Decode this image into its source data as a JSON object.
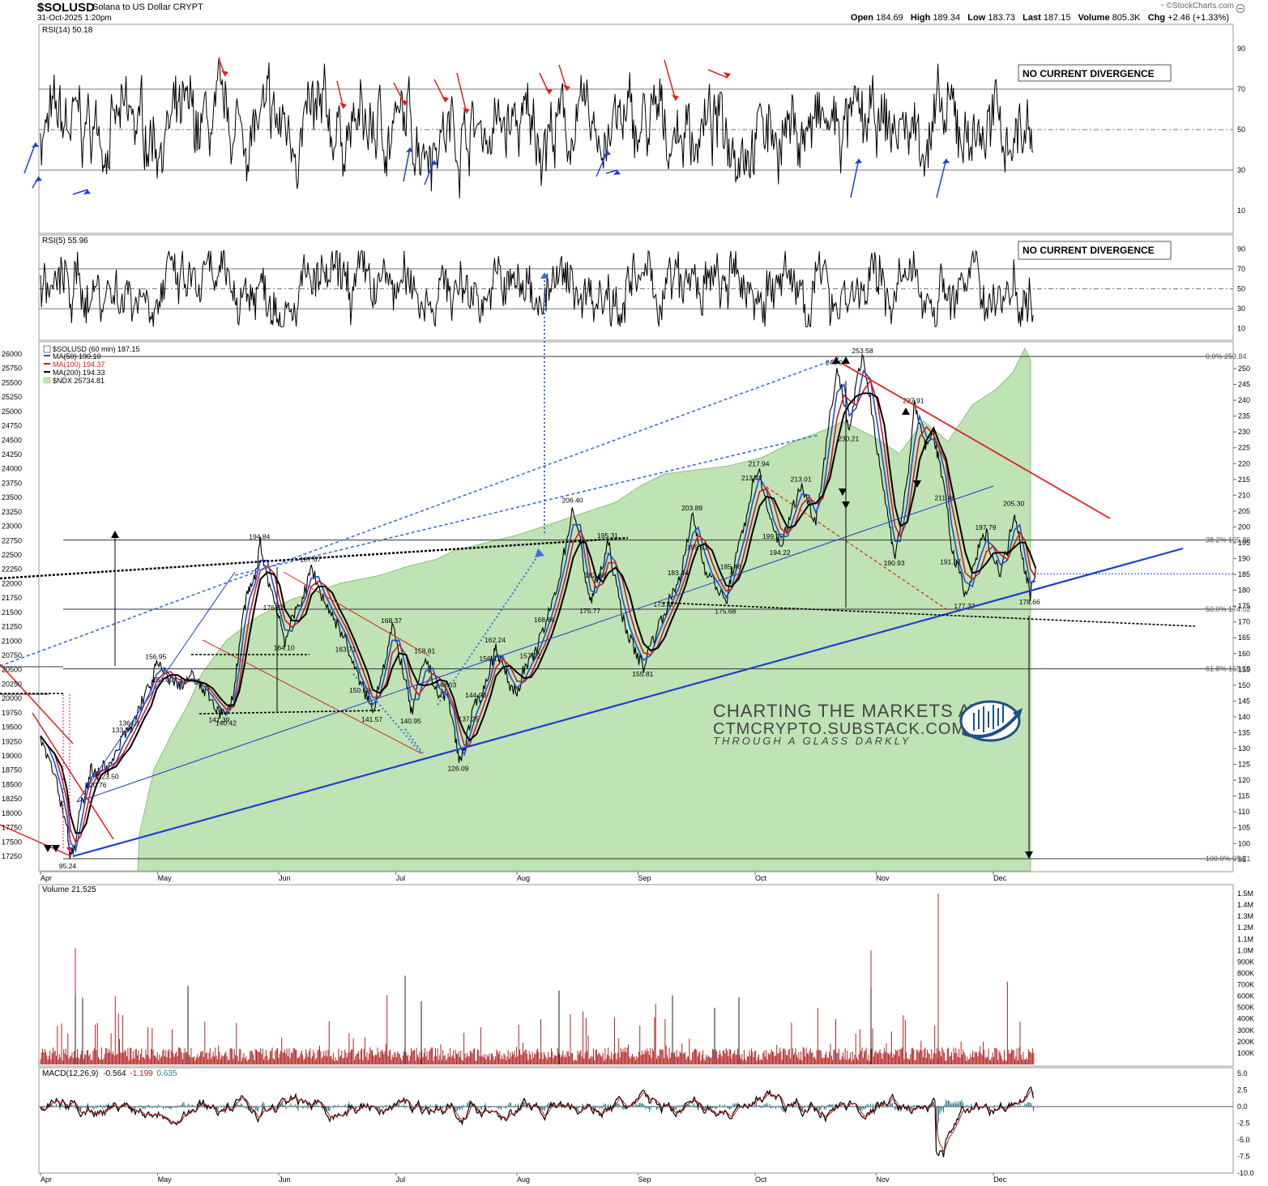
{
  "header": {
    "symbol": "$SOLUSD",
    "name": "Solana to US Dollar  CRYPT",
    "datetime": "31-Oct-2025 1:20pm",
    "watermark": "©StockCharts.com",
    "stats": [
      {
        "label": "Open",
        "value": "184.69"
      },
      {
        "label": "High",
        "value": "189.34"
      },
      {
        "label": "Low",
        "value": "183.73"
      },
      {
        "label": "Last",
        "value": "187.15"
      },
      {
        "label": "Volume",
        "value": "805.3K"
      },
      {
        "label": "Chg",
        "value": "+2.46 (+1.33%)"
      }
    ]
  },
  "panels": {
    "rsi14": {
      "label": "RSI(14) 50.18",
      "ticks": [
        "90",
        "70",
        "50",
        "30",
        "10"
      ],
      "note": "NO CURRENT DIVERGENCE",
      "color": "#000000"
    },
    "rsi5": {
      "label": "RSI(5) 55.96",
      "ticks": [
        "90",
        "70",
        "50",
        "30",
        "10"
      ],
      "note": "NO CURRENT DIVERGENCE",
      "color": "#000000"
    },
    "price": {
      "legend": [
        {
          "text": "$SOLUSD (60 min) 187.15",
          "color": "#000000"
        },
        {
          "text": "MA(50) 190.10",
          "color": "#1f4fd1"
        },
        {
          "text": "MA(100) 194.37",
          "color": "#d11b1b"
        },
        {
          "text": "MA(200) 194.33",
          "color": "#000000"
        },
        {
          "text": "$NDX 25734.81",
          "color": "#4c9a3c"
        }
      ],
      "right_ticks": [
        "250",
        "245",
        "240",
        "235",
        "230",
        "225",
        "220",
        "215",
        "210",
        "205",
        "200",
        "195",
        "190",
        "185",
        "180",
        "175",
        "170",
        "165",
        "160",
        "155",
        "150",
        "145",
        "140",
        "135",
        "130",
        "125",
        "120",
        "115",
        "110",
        "105",
        "100",
        "95"
      ],
      "left_ticks": [
        "26000",
        "25750",
        "25500",
        "25250",
        "25000",
        "24750",
        "24500",
        "24250",
        "24000",
        "23750",
        "23500",
        "23250",
        "23000",
        "22750",
        "22500",
        "22250",
        "22000",
        "21750",
        "21500",
        "21250",
        "21000",
        "20750",
        "20500",
        "20250",
        "20000",
        "19750",
        "19500",
        "19250",
        "19000",
        "18750",
        "18500",
        "18250",
        "18000",
        "17750",
        "17500",
        "17250"
      ],
      "fib_labels": [
        "0.0% 253.84",
        "38.2% 195.86",
        "50.0% 174.02",
        "61.8% 155.19",
        "100.0% 95.21"
      ],
      "x_labels": [
        "Apr",
        "May",
        "Jun",
        "Jul",
        "Aug",
        "Sep",
        "Oct",
        "Nov",
        "Dec"
      ],
      "price_labels": [
        "253.58",
        "249.92",
        "237.91",
        "230.21",
        "217.94",
        "213.47",
        "213.01",
        "211.46",
        "206.40",
        "205.30",
        "203.89",
        "199.37",
        "197.79",
        "195.91",
        "195.31",
        "194.84",
        "194.22",
        "191.27",
        "190.93",
        "187.67",
        "185.46",
        "183.44",
        "182.68",
        "178.66",
        "177.37",
        "176.82",
        "175.77",
        "175.68",
        "174.16",
        "173.47",
        "168.66",
        "168.37",
        "164.10",
        "163.71",
        "162.24",
        "159.50",
        "158.81",
        "157.22",
        "156.95",
        "156.41",
        "155.81",
        "154.00",
        "150.68",
        "148.03",
        "144.90",
        "141.57",
        "141.39",
        "140.95",
        "140.42",
        "137.25",
        "136.03",
        "136.01",
        "133.86",
        "133.97",
        "126.09",
        "123.50",
        "120.76",
        "112.22",
        "95.24"
      ]
    },
    "volume": {
      "label": "Volume 21,525",
      "ticks": [
        "1.5M",
        "1.4M",
        "1.3M",
        "1.2M",
        "1.1M",
        "1.0M",
        "900K",
        "800K",
        "700K",
        "600K",
        "500K",
        "400K",
        "300K",
        "200K",
        "100K"
      ],
      "color": "#b52424"
    },
    "macd": {
      "label_prefix": "MACD(12,26,9)",
      "value": "-0.564",
      "signal": "-1.199",
      "hist": "0.635",
      "ticks": [
        "5.0",
        "2.5",
        "0.0",
        "-2.5",
        "-5.0",
        "-7.5",
        "-10.0"
      ],
      "x_labels": [
        "Apr",
        "May",
        "Jun",
        "Jul",
        "Aug",
        "Sep",
        "Oct",
        "Nov",
        "Dec"
      ]
    }
  },
  "watermark_logo": {
    "line1": "CHARTING THE MARKETS AT",
    "line2": "CTMCRYPTO.SUBSTACK.COM",
    "line3": "THROUGH A GLASS DARKLY"
  },
  "colors": {
    "ndx_fill": "#bfe3b4",
    "ndx_line": "#8cc27c",
    "trend_blue": "#1f3fd1",
    "trend_red": "#e02020",
    "dotted_blue": "#3a6fe0"
  },
  "chart_data": {
    "type": "line",
    "title": "$SOLUSD (60 min) 187.15",
    "x": [
      "Apr",
      "May",
      "Jun",
      "Jul",
      "Aug",
      "Sep",
      "Oct",
      "Nov",
      "Dec"
    ],
    "ylim": [
      93,
      258
    ],
    "secondary_ylim": [
      17000,
      26100
    ],
    "series": [
      {
        "name": "$SOLUSD (60 min) 187.15",
        "points": [
          [
            0.0,
            134
          ],
          [
            0.008,
            128
          ],
          [
            0.016,
            123
          ],
          [
            0.024,
            112
          ],
          [
            0.03,
            106
          ],
          [
            0.034,
            95.24
          ],
          [
            0.04,
            100
          ],
          [
            0.046,
            112
          ],
          [
            0.052,
            118
          ],
          [
            0.058,
            124
          ],
          [
            0.064,
            120.76
          ],
          [
            0.07,
            125
          ],
          [
            0.078,
            123.5
          ],
          [
            0.086,
            128
          ],
          [
            0.094,
            133.86
          ],
          [
            0.102,
            136.01
          ],
          [
            0.11,
            141
          ],
          [
            0.118,
            147
          ],
          [
            0.126,
            150
          ],
          [
            0.132,
            156.95
          ],
          [
            0.14,
            154
          ],
          [
            0.148,
            152
          ],
          [
            0.156,
            150
          ],
          [
            0.164,
            151
          ],
          [
            0.172,
            153
          ],
          [
            0.18,
            150
          ],
          [
            0.188,
            148
          ],
          [
            0.196,
            145
          ],
          [
            0.204,
            141.39
          ],
          [
            0.212,
            140.42
          ],
          [
            0.22,
            148
          ],
          [
            0.226,
            162
          ],
          [
            0.232,
            175
          ],
          [
            0.238,
            180
          ],
          [
            0.244,
            184
          ],
          [
            0.25,
            194.84
          ],
          [
            0.258,
            184
          ],
          [
            0.266,
            176.82
          ],
          [
            0.272,
            171
          ],
          [
            0.278,
            164.1
          ],
          [
            0.286,
            170
          ],
          [
            0.294,
            176
          ],
          [
            0.302,
            180
          ],
          [
            0.308,
            187.67
          ],
          [
            0.316,
            181
          ],
          [
            0.324,
            176
          ],
          [
            0.332,
            172
          ],
          [
            0.34,
            168
          ],
          [
            0.348,
            163.71
          ],
          [
            0.356,
            156
          ],
          [
            0.364,
            150.68
          ],
          [
            0.372,
            146
          ],
          [
            0.378,
            141.57
          ],
          [
            0.386,
            152
          ],
          [
            0.394,
            160
          ],
          [
            0.4,
            168.37
          ],
          [
            0.408,
            160
          ],
          [
            0.416,
            150
          ],
          [
            0.422,
            140.95
          ],
          [
            0.43,
            150
          ],
          [
            0.438,
            158.81
          ],
          [
            0.446,
            152
          ],
          [
            0.454,
            146
          ],
          [
            0.462,
            148.03
          ],
          [
            0.47,
            137
          ],
          [
            0.476,
            126.09
          ],
          [
            0.482,
            130
          ],
          [
            0.488,
            137.25
          ],
          [
            0.496,
            144.9
          ],
          [
            0.504,
            148
          ],
          [
            0.512,
            156.41
          ],
          [
            0.518,
            162.24
          ],
          [
            0.526,
            156
          ],
          [
            0.534,
            150
          ],
          [
            0.542,
            148
          ],
          [
            0.55,
            155
          ],
          [
            0.558,
            157.22
          ],
          [
            0.566,
            163
          ],
          [
            0.574,
            168.66
          ],
          [
            0.582,
            176
          ],
          [
            0.59,
            184
          ],
          [
            0.598,
            195
          ],
          [
            0.606,
            206.4
          ],
          [
            0.614,
            195
          ],
          [
            0.62,
            184
          ],
          [
            0.626,
            175.77
          ],
          [
            0.632,
            182.68
          ],
          [
            0.64,
            188
          ],
          [
            0.646,
            195.31
          ],
          [
            0.654,
            182.68
          ],
          [
            0.662,
            172
          ],
          [
            0.67,
            165
          ],
          [
            0.678,
            160
          ],
          [
            0.686,
            155.81
          ],
          [
            0.694,
            163
          ],
          [
            0.702,
            168
          ],
          [
            0.71,
            173.47
          ],
          [
            0.718,
            178
          ],
          [
            0.726,
            183.44
          ],
          [
            0.734,
            192
          ],
          [
            0.742,
            203.89
          ],
          [
            0.748,
            195.91
          ],
          [
            0.756,
            187
          ],
          [
            0.764,
            183.44
          ],
          [
            0.772,
            180
          ],
          [
            0.78,
            175.68
          ],
          [
            0.786,
            185.46
          ],
          [
            0.794,
            193
          ],
          [
            0.802,
            202
          ],
          [
            0.81,
            213.47
          ],
          [
            0.818,
            217.94
          ],
          [
            0.826,
            205
          ],
          [
            0.834,
            199.37
          ],
          [
            0.842,
            194.22
          ],
          [
            0.85,
            200
          ],
          [
            0.858,
            208
          ],
          [
            0.866,
            213.01
          ],
          [
            0.874,
            207
          ],
          [
            0.882,
            202
          ],
          [
            0.89,
            218
          ],
          [
            0.898,
            235
          ],
          [
            0.906,
            249.92
          ],
          [
            0.914,
            240
          ],
          [
            0.92,
            230.21
          ],
          [
            0.928,
            245
          ],
          [
            0.936,
            253.58
          ],
          [
            0.944,
            240
          ],
          [
            0.952,
            225
          ],
          [
            0.96,
            210
          ],
          [
            0.966,
            200
          ],
          [
            0.972,
            190.93
          ],
          [
            0.978,
            200
          ],
          [
            0.986,
            215
          ],
          [
            0.994,
            237.91
          ],
          [
            1.0,
            232
          ],
          [
            1.008,
            225
          ],
          [
            1.016,
            230
          ],
          [
            1.022,
            220
          ],
          [
            1.03,
            211.46
          ],
          [
            1.036,
            191.27
          ],
          [
            1.044,
            188
          ],
          [
            1.052,
            177.37
          ],
          [
            1.06,
            185
          ],
          [
            1.068,
            194
          ],
          [
            1.076,
            197.79
          ],
          [
            1.084,
            190
          ],
          [
            1.092,
            186
          ],
          [
            1.1,
            193
          ],
          [
            1.108,
            205.3
          ],
          [
            1.114,
            196
          ],
          [
            1.12,
            186
          ],
          [
            1.126,
            178.66
          ],
          [
            1.132,
            187.15
          ]
        ]
      }
    ],
    "annotations": [
      "NO CURRENT DIVERGENCE"
    ],
    "grid": false,
    "legend": "top-left"
  }
}
